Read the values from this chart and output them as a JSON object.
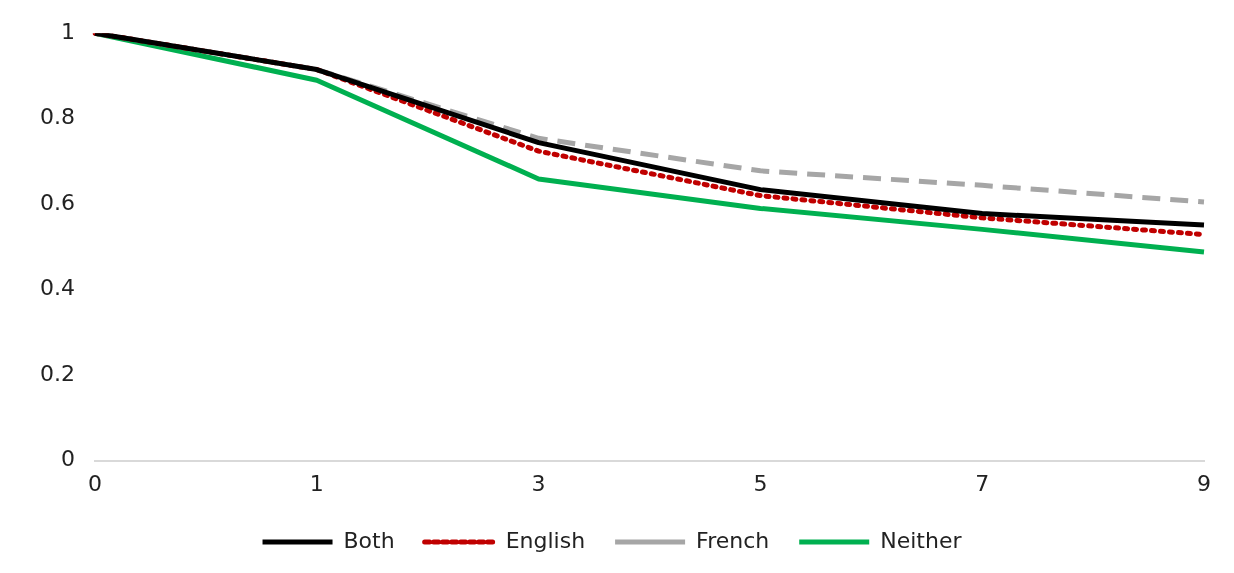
{
  "chart_data": {
    "type": "line",
    "categories": [
      "0",
      "1",
      "3",
      "5",
      "7",
      "9"
    ],
    "series": [
      {
        "name": "Both",
        "color": "#000000",
        "line_style": "solid",
        "values": [
          1,
          0.915,
          0.744,
          0.634,
          0.578,
          0.551
        ]
      },
      {
        "name": "English",
        "color": "#c00000",
        "line_style": "dotted",
        "values": [
          1,
          0.915,
          0.724,
          0.62,
          0.568,
          0.529
        ]
      },
      {
        "name": "French",
        "color": "#a6a6a6",
        "line_style": "dashed",
        "values": [
          1,
          0.915,
          0.754,
          0.678,
          0.644,
          0.605
        ]
      },
      {
        "name": "Neither",
        "color": "#00b050",
        "line_style": "solid",
        "values": [
          1,
          0.89,
          0.659,
          0.59,
          0.541,
          0.488
        ]
      }
    ],
    "ylim": [
      0,
      1
    ],
    "yticks": [
      0,
      0.2,
      0.4,
      0.6,
      0.8,
      1
    ],
    "grid": false,
    "legend": "bottom",
    "marker": "none"
  }
}
